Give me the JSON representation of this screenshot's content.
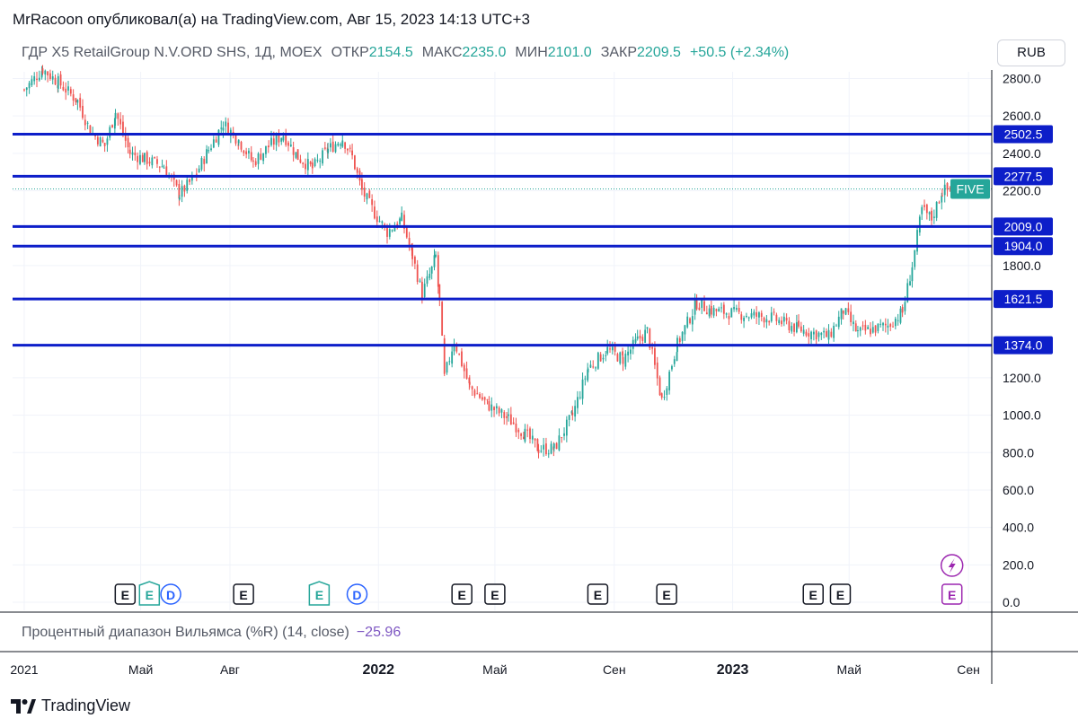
{
  "header": {
    "publisher_line": "MrRacoon опубликовал(а) на TradingView.com, Авг 15, 2023 14:13 UTC+3"
  },
  "legend": {
    "symbol": "ГДР X5 RetailGroup N.V.ORD SHS, 1Д, MOEX",
    "open_label": "ОТКР",
    "open_value": "2154.5",
    "high_label": "МАКС",
    "high_value": "2235.0",
    "low_label": "МИН",
    "low_value": "2101.0",
    "close_label": "ЗАКР",
    "close_value": "2209.5",
    "change": "+50.5 (+2.34%)"
  },
  "currency_button": "RUB",
  "symbol_tag": "FIVE",
  "indicator": {
    "label": "Процентный диапазон Вильямса (%R) (14, close)",
    "value": "−25.96"
  },
  "brand": "TradingView",
  "colors": {
    "up": "#26a69a",
    "down": "#ef5350",
    "level_line": "#0d1ec9",
    "earnings_icon": "#131722",
    "earnings_icon_green": "#26a69a",
    "dividend_icon": "#2962ff",
    "future_event_icon": "#9c27b0"
  },
  "chart_data": {
    "type": "candlestick",
    "y_axis": {
      "min": 0,
      "max": 2850,
      "ticks": [
        "0.0",
        "200.0",
        "400.0",
        "600.0",
        "800.0",
        "1000.0",
        "1200.0",
        "1800.0",
        "2200.0",
        "2400.0",
        "2600.0",
        "2800.0"
      ],
      "tick_values": [
        0,
        200,
        400,
        600,
        800,
        1000,
        1200,
        1800,
        2200,
        2400,
        2600,
        2800
      ]
    },
    "x_axis": {
      "labels": [
        "2021",
        "Май",
        "Авг",
        "2022",
        "Май",
        "Сен",
        "2023",
        "Май",
        "Сен"
      ],
      "label_positions": [
        "2021-01-01",
        "2021-05-01",
        "2021-08-01",
        "2022-01-01",
        "2022-05-01",
        "2022-09-01",
        "2023-01-01",
        "2023-05-01",
        "2023-09-01"
      ],
      "bold": [
        false,
        false,
        false,
        true,
        false,
        false,
        true,
        false,
        false
      ],
      "start": "2020-12-20",
      "end": "2023-09-25"
    },
    "horizontal_levels": [
      {
        "value": 2502.5,
        "label": "2502.5"
      },
      {
        "value": 2277.5,
        "label": "2277.5"
      },
      {
        "value": 2009.0,
        "label": "2009.0"
      },
      {
        "value": 1904.0,
        "label": "1904.0"
      },
      {
        "value": 1621.5,
        "label": "1621.5"
      },
      {
        "value": 1374.0,
        "label": "1374.0"
      }
    ],
    "last_price": 2209.5,
    "price_path": [
      [
        "2021-01-01",
        2740
      ],
      [
        "2021-01-20",
        2850
      ],
      [
        "2021-02-05",
        2780
      ],
      [
        "2021-02-25",
        2680
      ],
      [
        "2021-03-10",
        2520
      ],
      [
        "2021-03-25",
        2440
      ],
      [
        "2021-04-05",
        2620
      ],
      [
        "2021-04-20",
        2400
      ],
      [
        "2021-05-05",
        2370
      ],
      [
        "2021-05-25",
        2330
      ],
      [
        "2021-06-10",
        2180
      ],
      [
        "2021-06-25",
        2270
      ],
      [
        "2021-07-10",
        2420
      ],
      [
        "2021-07-25",
        2560
      ],
      [
        "2021-08-10",
        2470
      ],
      [
        "2021-08-25",
        2350
      ],
      [
        "2021-09-10",
        2440
      ],
      [
        "2021-09-25",
        2500
      ],
      [
        "2021-10-10",
        2380
      ],
      [
        "2021-10-25",
        2320
      ],
      [
        "2021-11-10",
        2420
      ],
      [
        "2021-11-25",
        2480
      ],
      [
        "2021-12-05",
        2380
      ],
      [
        "2021-12-15",
        2200
      ],
      [
        "2021-12-28",
        2080
      ],
      [
        "2022-01-10",
        1980
      ],
      [
        "2022-01-25",
        2050
      ],
      [
        "2022-02-05",
        1850
      ],
      [
        "2022-02-15",
        1650
      ],
      [
        "2022-02-25",
        1780
      ],
      [
        "2022-03-01",
        1850
      ],
      [
        "2022-03-05",
        1600
      ],
      [
        "2022-03-10",
        1200
      ],
      [
        "2022-03-20",
        1400
      ],
      [
        "2022-04-05",
        1150
      ],
      [
        "2022-04-25",
        1050
      ],
      [
        "2022-05-15",
        980
      ],
      [
        "2022-06-01",
        900
      ],
      [
        "2022-06-15",
        820
      ],
      [
        "2022-07-01",
        820
      ],
      [
        "2022-07-20",
        1000
      ],
      [
        "2022-08-05",
        1250
      ],
      [
        "2022-08-25",
        1350
      ],
      [
        "2022-09-10",
        1300
      ],
      [
        "2022-09-25",
        1400
      ],
      [
        "2022-10-05",
        1450
      ],
      [
        "2022-10-20",
        1080
      ],
      [
        "2022-11-05",
        1380
      ],
      [
        "2022-11-25",
        1600
      ],
      [
        "2022-12-10",
        1560
      ],
      [
        "2023-01-10",
        1540
      ],
      [
        "2023-02-10",
        1520
      ],
      [
        "2023-03-10",
        1460
      ],
      [
        "2023-04-10",
        1420
      ],
      [
        "2023-04-25",
        1560
      ],
      [
        "2023-05-10",
        1440
      ],
      [
        "2023-06-10",
        1480
      ],
      [
        "2023-06-25",
        1550
      ],
      [
        "2023-07-05",
        1800
      ],
      [
        "2023-07-15",
        2100
      ],
      [
        "2023-07-25",
        2050
      ],
      [
        "2023-08-05",
        2200
      ],
      [
        "2023-08-15",
        2209.5
      ]
    ],
    "event_markers": [
      {
        "date": "2021-04-15",
        "kind": "E",
        "style": "plain"
      },
      {
        "date": "2021-05-10",
        "kind": "E",
        "style": "green"
      },
      {
        "date": "2021-06-01",
        "kind": "D",
        "style": "dividend"
      },
      {
        "date": "2021-08-15",
        "kind": "E",
        "style": "plain"
      },
      {
        "date": "2021-11-01",
        "kind": "E",
        "style": "green"
      },
      {
        "date": "2021-12-10",
        "kind": "D",
        "style": "dividend"
      },
      {
        "date": "2022-03-28",
        "kind": "E",
        "style": "plain"
      },
      {
        "date": "2022-05-01",
        "kind": "E",
        "style": "plain"
      },
      {
        "date": "2022-08-15",
        "kind": "E",
        "style": "plain"
      },
      {
        "date": "2022-10-25",
        "kind": "E",
        "style": "plain"
      },
      {
        "date": "2023-03-25",
        "kind": "E",
        "style": "plain"
      },
      {
        "date": "2023-04-22",
        "kind": "E",
        "style": "plain"
      },
      {
        "date": "2023-08-15",
        "kind": "E",
        "style": "future"
      }
    ]
  }
}
